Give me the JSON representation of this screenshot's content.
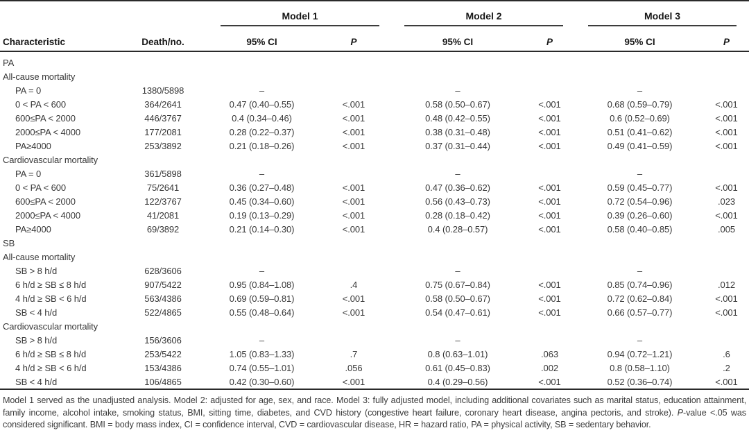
{
  "table": {
    "header": {
      "characteristic": "Characteristic",
      "death_no": "Death/no.",
      "models": [
        "Model 1",
        "Model 2",
        "Model 3"
      ],
      "ci_label": "95% CI",
      "p_label": "P"
    },
    "rows": [
      {
        "label": "PA",
        "indent": false,
        "death": "",
        "m1_ci": "",
        "m1_p": "",
        "m2_ci": "",
        "m2_p": "",
        "m3_ci": "",
        "m3_p": ""
      },
      {
        "label": "All-cause mortality",
        "indent": false,
        "death": "",
        "m1_ci": "",
        "m1_p": "",
        "m2_ci": "",
        "m2_p": "",
        "m3_ci": "",
        "m3_p": ""
      },
      {
        "label": "PA = 0",
        "indent": true,
        "death": "1380/5898",
        "m1_ci": "–",
        "m1_p": "",
        "m2_ci": "–",
        "m2_p": "",
        "m3_ci": "–",
        "m3_p": ""
      },
      {
        "label": "0 < PA < 600",
        "indent": true,
        "death": "364/2641",
        "m1_ci": "0.47 (0.40–0.55)",
        "m1_p": "<.001",
        "m2_ci": "0.58 (0.50–0.67)",
        "m2_p": "<.001",
        "m3_ci": "0.68 (0.59–0.79)",
        "m3_p": "<.001"
      },
      {
        "label": "600≤PA < 2000",
        "indent": true,
        "death": "446/3767",
        "m1_ci": "0.4 (0.34–0.46)",
        "m1_p": "<.001",
        "m2_ci": "0.48 (0.42–0.55)",
        "m2_p": "<.001",
        "m3_ci": "0.6 (0.52–0.69)",
        "m3_p": "<.001"
      },
      {
        "label": "2000≤PA < 4000",
        "indent": true,
        "death": "177/2081",
        "m1_ci": "0.28 (0.22–0.37)",
        "m1_p": "<.001",
        "m2_ci": "0.38 (0.31–0.48)",
        "m2_p": "<.001",
        "m3_ci": "0.51 (0.41–0.62)",
        "m3_p": "<.001"
      },
      {
        "label": "PA≥4000",
        "indent": true,
        "death": "253/3892",
        "m1_ci": "0.21 (0.18–0.26)",
        "m1_p": "<.001",
        "m2_ci": "0.37 (0.31–0.44)",
        "m2_p": "<.001",
        "m3_ci": "0.49 (0.41–0.59)",
        "m3_p": "<.001"
      },
      {
        "label": "Cardiovascular mortality",
        "indent": false,
        "death": "",
        "m1_ci": "",
        "m1_p": "",
        "m2_ci": "",
        "m2_p": "",
        "m3_ci": "",
        "m3_p": ""
      },
      {
        "label": "PA = 0",
        "indent": true,
        "death": "361/5898",
        "m1_ci": "–",
        "m1_p": "",
        "m2_ci": "–",
        "m2_p": "",
        "m3_ci": "–",
        "m3_p": ""
      },
      {
        "label": "0 < PA < 600",
        "indent": true,
        "death": "75/2641",
        "m1_ci": "0.36 (0.27–0.48)",
        "m1_p": "<.001",
        "m2_ci": "0.47 (0.36–0.62)",
        "m2_p": "<.001",
        "m3_ci": "0.59 (0.45–0.77)",
        "m3_p": "<.001"
      },
      {
        "label": "600≤PA < 2000",
        "indent": true,
        "death": "122/3767",
        "m1_ci": "0.45 (0.34–0.60)",
        "m1_p": "<.001",
        "m2_ci": "0.56 (0.43–0.73)",
        "m2_p": "<.001",
        "m3_ci": "0.72 (0.54–0.96)",
        "m3_p": ".023"
      },
      {
        "label": "2000≤PA < 4000",
        "indent": true,
        "death": "41/2081",
        "m1_ci": "0.19 (0.13–0.29)",
        "m1_p": "<.001",
        "m2_ci": "0.28 (0.18–0.42)",
        "m2_p": "<.001",
        "m3_ci": "0.39 (0.26–0.60)",
        "m3_p": "<.001"
      },
      {
        "label": "PA≥4000",
        "indent": true,
        "death": "69/3892",
        "m1_ci": "0.21 (0.14–0.30)",
        "m1_p": "<.001",
        "m2_ci": "0.4 (0.28–0.57)",
        "m2_p": "<.001",
        "m3_ci": "0.58 (0.40–0.85)",
        "m3_p": ".005"
      },
      {
        "label": "SB",
        "indent": false,
        "death": "",
        "m1_ci": "",
        "m1_p": "",
        "m2_ci": "",
        "m2_p": "",
        "m3_ci": "",
        "m3_p": ""
      },
      {
        "label": "All-cause mortality",
        "indent": false,
        "death": "",
        "m1_ci": "",
        "m1_p": "",
        "m2_ci": "",
        "m2_p": "",
        "m3_ci": "",
        "m3_p": ""
      },
      {
        "label": "SB > 8 h/d",
        "indent": true,
        "death": "628/3606",
        "m1_ci": "–",
        "m1_p": "",
        "m2_ci": "–",
        "m2_p": "",
        "m3_ci": "–",
        "m3_p": ""
      },
      {
        "label": "6 h/d ≥ SB ≤ 8 h/d",
        "indent": true,
        "death": "907/5422",
        "m1_ci": "0.95 (0.84–1.08)",
        "m1_p": ".4",
        "m2_ci": "0.75 (0.67–0.84)",
        "m2_p": "<.001",
        "m3_ci": "0.85 (0.74–0.96)",
        "m3_p": ".012"
      },
      {
        "label": "4 h/d ≥ SB < 6 h/d",
        "indent": true,
        "death": "563/4386",
        "m1_ci": "0.69 (0.59–0.81)",
        "m1_p": "<.001",
        "m2_ci": "0.58 (0.50–0.67)",
        "m2_p": "<.001",
        "m3_ci": "0.72 (0.62–0.84)",
        "m3_p": "<.001"
      },
      {
        "label": "SB < 4 h/d",
        "indent": true,
        "death": "522/4865",
        "m1_ci": "0.55 (0.48–0.64)",
        "m1_p": "<.001",
        "m2_ci": "0.54 (0.47–0.61)",
        "m2_p": "<.001",
        "m3_ci": "0.66 (0.57–0.77)",
        "m3_p": "<.001"
      },
      {
        "label": "Cardiovascular mortality",
        "indent": false,
        "death": "",
        "m1_ci": "",
        "m1_p": "",
        "m2_ci": "",
        "m2_p": "",
        "m3_ci": "",
        "m3_p": ""
      },
      {
        "label": "SB > 8 h/d",
        "indent": true,
        "death": "156/3606",
        "m1_ci": "–",
        "m1_p": "",
        "m2_ci": "–",
        "m2_p": "",
        "m3_ci": "–",
        "m3_p": ""
      },
      {
        "label": "6 h/d ≥ SB ≤ 8 h/d",
        "indent": true,
        "death": "253/5422",
        "m1_ci": "1.05 (0.83–1.33)",
        "m1_p": ".7",
        "m2_ci": "0.8 (0.63–1.01)",
        "m2_p": ".063",
        "m3_ci": "0.94 (0.72–1.21)",
        "m3_p": ".6"
      },
      {
        "label": "4 h/d ≥ SB < 6 h/d",
        "indent": true,
        "death": "153/4386",
        "m1_ci": "0.74 (0.55–1.01)",
        "m1_p": ".056",
        "m2_ci": "0.61 (0.45–0.83)",
        "m2_p": ".002",
        "m3_ci": "0.8 (0.58–1.10)",
        "m3_p": ".2"
      },
      {
        "label": "SB < 4 h/d",
        "indent": true,
        "death": "106/4865",
        "m1_ci": "0.42 (0.30–0.60)",
        "m1_p": "<.001",
        "m2_ci": "0.4 (0.29–0.56)",
        "m2_p": "<.001",
        "m3_ci": "0.52 (0.36–0.74)",
        "m3_p": "<.001"
      }
    ]
  },
  "footnote": {
    "part1": "Model 1 served as the unadjusted analysis. Model 2: adjusted for age, sex, and race. Model 3: fully adjusted model, including additional covariates such as marital status, education attainment, family income, alcohol intake, smoking status, BMI, sitting time, diabetes, and CVD history (congestive heart failure, coronary heart disease, angina pectoris, and stroke). ",
    "p_italic": "P",
    "part2": "-value <.05 was considered significant. BMI = body mass index, CI = confidence interval, CVD = cardiovascular disease, HR = hazard ratio, PA = physical activity, SB = sedentary behavior."
  }
}
